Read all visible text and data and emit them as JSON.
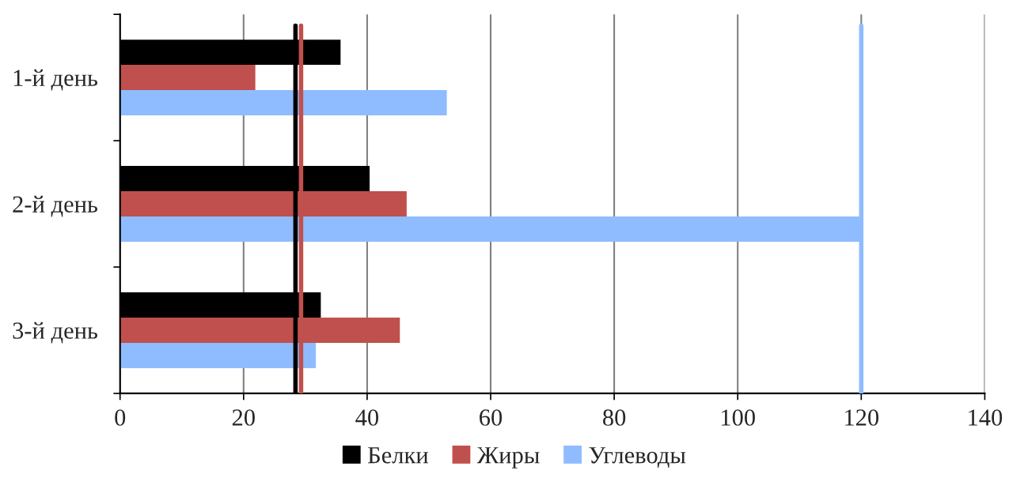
{
  "chart_data": {
    "type": "bar",
    "orientation": "horizontal",
    "categories": [
      "1-й день",
      "2-й день",
      "3-й день"
    ],
    "series": [
      {
        "name": "Белки",
        "color": "#000000",
        "values": [
          35.7,
          40.4,
          32.5
        ]
      },
      {
        "name": "Жиры",
        "color": "#c0504d",
        "values": [
          21.9,
          46.4,
          45.3
        ]
      },
      {
        "name": "Углеводы",
        "color": "#8fbcff",
        "values": [
          52.9,
          119.7,
          31.7
        ]
      }
    ],
    "xlim": [
      0,
      140
    ],
    "xticks": [
      0,
      20,
      40,
      60,
      80,
      100,
      120,
      140
    ],
    "grid": "x",
    "legend": "bottom",
    "ref_lines": [
      {
        "axis": "x",
        "value": 28.4,
        "color": "#000000"
      },
      {
        "axis": "x",
        "value": 29.3,
        "color": "#c0504d"
      },
      {
        "axis": "x",
        "value": 120,
        "color": "#8fbcff"
      }
    ]
  }
}
